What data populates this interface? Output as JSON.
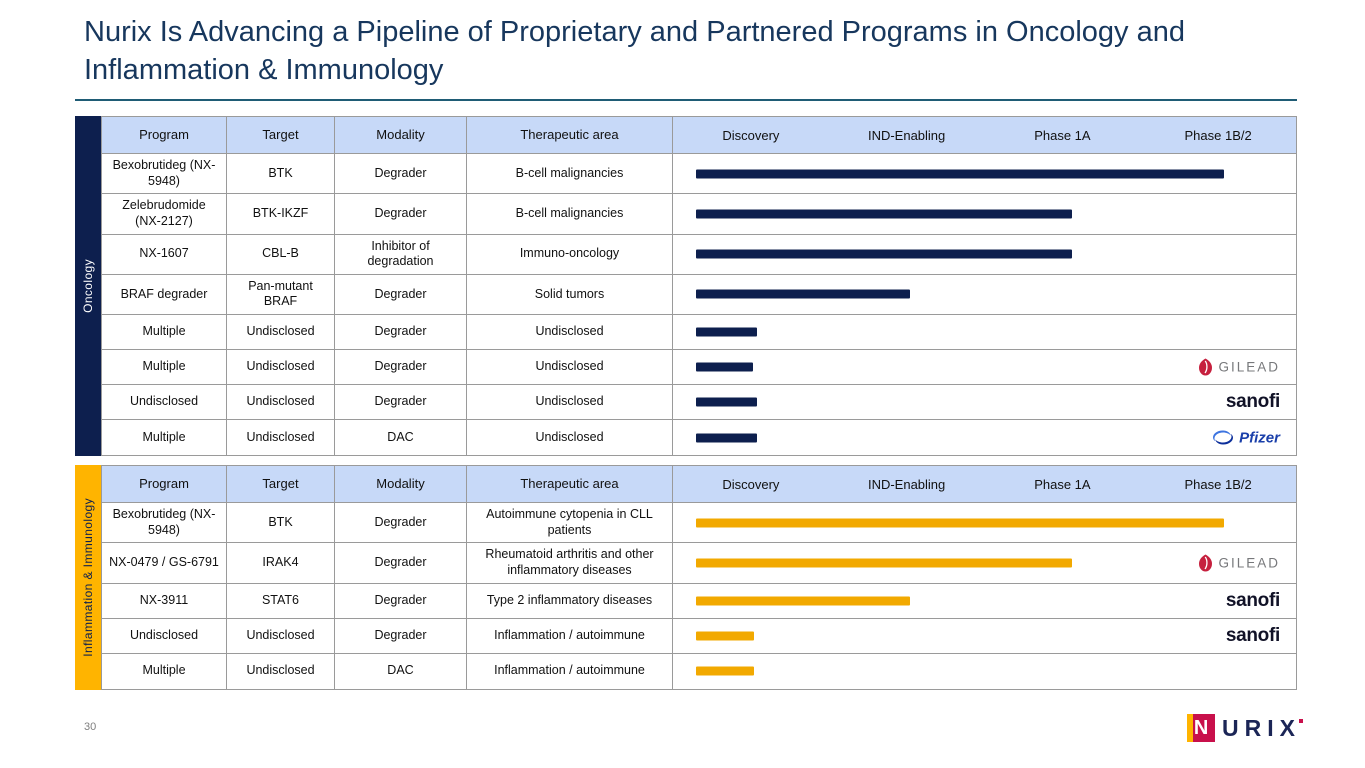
{
  "slide": {
    "title": "Nurix Is Advancing a Pipeline of Proprietary and Partnered Programs in Oncology and Inflammation & Immunology",
    "page_number": "30"
  },
  "columns": [
    "Program",
    "Target",
    "Modality",
    "Therapeutic area",
    "Discovery",
    "IND-Enabling",
    "Phase 1A",
    "Phase 1B/2"
  ],
  "partners": {
    "gilead": {
      "label": "GILEAD",
      "icon_color": "#c6203e",
      "text_color": "#77787b"
    },
    "sanofi": {
      "label": "sanofi",
      "text_color": "#111227"
    },
    "pfizer": {
      "label": "Pfizer",
      "icon_colors": [
        "#3d74e0",
        "#0b2e9b"
      ],
      "text_color": "#1a3faa"
    }
  },
  "tables": [
    {
      "id": "oncology",
      "label": "Oncology",
      "strip_color": "#0d1f4e",
      "strip_text_color": "#ffffff",
      "bar_color": "#0d1f4e",
      "rows": [
        {
          "program": "Bexobrutideg (NX-5948)",
          "target": "BTK",
          "modality": "Degrader",
          "area": "B-cell malignancies",
          "bar": {
            "start_pct": 3.7,
            "end_pct": 88.5
          },
          "partner": null
        },
        {
          "program": "Zelebrudomide (NX-2127)",
          "target": "BTK-IKZF",
          "modality": "Degrader",
          "area": "B-cell malignancies",
          "bar": {
            "start_pct": 3.7,
            "end_pct": 64
          },
          "partner": null
        },
        {
          "program": "NX-1607",
          "target": "CBL-B",
          "modality": "Inhibitor of degradation",
          "area": "Immuno-oncology",
          "bar": {
            "start_pct": 3.7,
            "end_pct": 64
          },
          "partner": null
        },
        {
          "program": "BRAF degrader",
          "target": "Pan-mutant BRAF",
          "modality": "Degrader",
          "area": "Solid tumors",
          "bar": {
            "start_pct": 3.7,
            "end_pct": 38
          },
          "partner": null
        },
        {
          "program": "Multiple",
          "target": "Undisclosed",
          "modality": "Degrader",
          "area": "Undisclosed",
          "bar": {
            "start_pct": 3.7,
            "end_pct": 13.5
          },
          "partner": null
        },
        {
          "program": "Multiple",
          "target": "Undisclosed",
          "modality": "Degrader",
          "area": "Undisclosed",
          "bar": {
            "start_pct": 3.7,
            "end_pct": 12.8
          },
          "partner": "gilead"
        },
        {
          "program": "Undisclosed",
          "target": "Undisclosed",
          "modality": "Degrader",
          "area": "Undisclosed",
          "bar": {
            "start_pct": 3.7,
            "end_pct": 13.5
          },
          "partner": "sanofi"
        },
        {
          "program": "Multiple",
          "target": "Undisclosed",
          "modality": "DAC",
          "area": "Undisclosed",
          "bar": {
            "start_pct": 3.7,
            "end_pct": 13.5
          },
          "partner": "pfizer"
        }
      ]
    },
    {
      "id": "inflammation-immunology",
      "label": "Inflammation & Immunology",
      "strip_color": "#ffb400",
      "strip_text_color": "#0d1f4e",
      "bar_color": "#f2a900",
      "rows": [
        {
          "program": "Bexobrutideg (NX-5948)",
          "target": "BTK",
          "modality": "Degrader",
          "area": "Autoimmune cytopenia in CLL patients",
          "bar": {
            "start_pct": 3.7,
            "end_pct": 88.5
          },
          "partner": null
        },
        {
          "program": "NX-0479 / GS-6791",
          "target": "IRAK4",
          "modality": "Degrader",
          "area": "Rheumatoid arthritis and other inflammatory diseases",
          "bar": {
            "start_pct": 3.7,
            "end_pct": 64
          },
          "partner": "gilead"
        },
        {
          "program": "NX-3911",
          "target": "STAT6",
          "modality": "Degrader",
          "area": "Type 2 inflammatory diseases",
          "bar": {
            "start_pct": 3.7,
            "end_pct": 38
          },
          "partner": "sanofi"
        },
        {
          "program": "Undisclosed",
          "target": "Undisclosed",
          "modality": "Degrader",
          "area": "Inflammation / autoimmune",
          "bar": {
            "start_pct": 3.7,
            "end_pct": 13
          },
          "partner": "sanofi"
        },
        {
          "program": "Multiple",
          "target": "Undisclosed",
          "modality": "DAC",
          "area": "Inflammation / autoimmune",
          "bar": {
            "start_pct": 3.7,
            "end_pct": 13
          },
          "partner": null
        }
      ]
    }
  ],
  "footer": {
    "logo_n": "N",
    "logo_text": "URIX"
  }
}
